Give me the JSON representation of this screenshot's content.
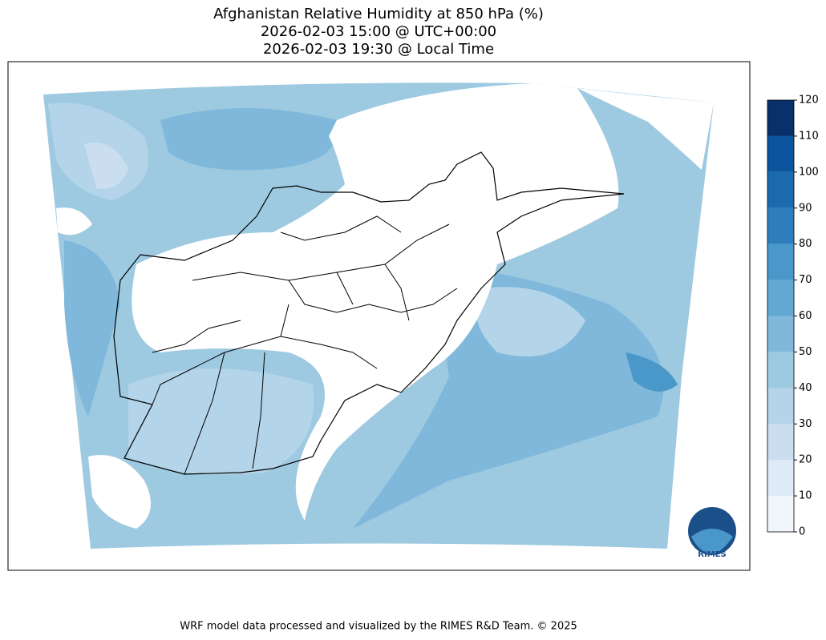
{
  "header": {
    "title": [
      "Afghanistan Relative Humidity at 850 hPa (%)",
      "2026-02-03 15:00 @ UTC+00:00",
      "2026-02-03 19:30 @ Local Time"
    ]
  },
  "colorbar": {
    "ticks": [
      0,
      10,
      20,
      30,
      40,
      50,
      60,
      70,
      80,
      90,
      100,
      110,
      120
    ],
    "colors": [
      "#f0f6fc",
      "#deebf7",
      "#cadef0",
      "#b4d4e9",
      "#9ecae1",
      "#7fb8da",
      "#62a8d2",
      "#4a98c9",
      "#2f7ebc",
      "#1b69af",
      "#0b559f",
      "#08306b"
    ]
  },
  "logo": {
    "text": "RIMES"
  },
  "footer": {
    "text": "WRF model data processed and visualized by the RIMES R&D Team. © 2025"
  }
}
